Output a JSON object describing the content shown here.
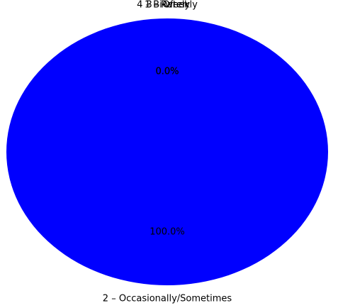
{
  "chart_data": {
    "type": "pie",
    "slices": [
      {
        "label": "4 – Bi-weekly",
        "value": 0.0,
        "pct_label": "0.0%",
        "color": "#0000ff"
      },
      {
        "label": "1 – Rarely",
        "value": 0.0,
        "pct_label": "0.0%",
        "color": "#0000ff"
      },
      {
        "label": "3 – Often",
        "value": 0.0,
        "pct_label": "0.0%",
        "color": "#0000ff"
      },
      {
        "label": "2 – Occasionally/Sometimes",
        "value": 100.0,
        "pct_label": "100.0%",
        "color": "#0000ff"
      }
    ],
    "title": "",
    "legend": "none"
  }
}
